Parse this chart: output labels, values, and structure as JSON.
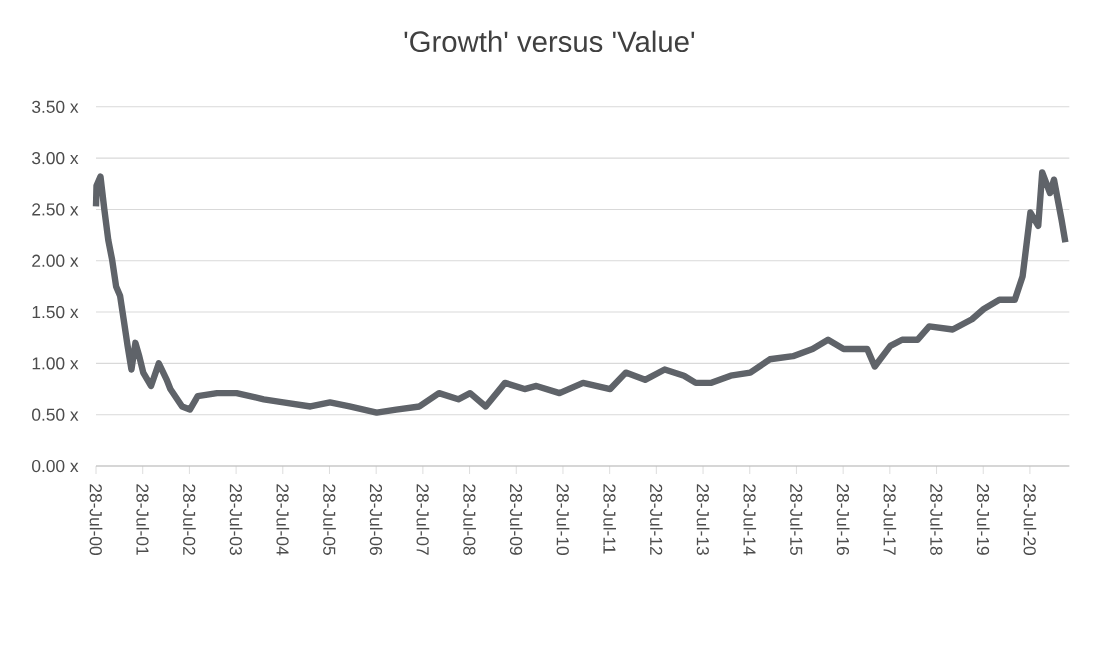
{
  "chart_data": {
    "type": "line",
    "title": "'Growth' versus 'Value'",
    "color": "#5f6369",
    "grid": "y",
    "xlim": [
      "2000-07-28",
      "2021-06-01"
    ],
    "ylim": [
      0,
      3.5
    ],
    "yticks": [
      {
        "value": 0,
        "label": "0.00 x"
      },
      {
        "value": 0.5,
        "label": "0.50 x"
      },
      {
        "value": 1,
        "label": "1.00 x"
      },
      {
        "value": 1.5,
        "label": "1.50 x"
      },
      {
        "value": 2,
        "label": "2.00 x"
      },
      {
        "value": 2.5,
        "label": "2.50 x"
      },
      {
        "value": 3,
        "label": "3.00 x"
      },
      {
        "value": 3.5,
        "label": "3.50 x"
      }
    ],
    "xticks": [
      {
        "value": "2000-07-28",
        "label": "28-Jul-00"
      },
      {
        "value": "2001-07-28",
        "label": "28-Jul-01"
      },
      {
        "value": "2002-07-28",
        "label": "28-Jul-02"
      },
      {
        "value": "2003-07-28",
        "label": "28-Jul-03"
      },
      {
        "value": "2004-07-28",
        "label": "28-Jul-04"
      },
      {
        "value": "2005-07-28",
        "label": "28-Jul-05"
      },
      {
        "value": "2006-07-28",
        "label": "28-Jul-06"
      },
      {
        "value": "2007-07-28",
        "label": "28-Jul-07"
      },
      {
        "value": "2008-07-28",
        "label": "28-Jul-08"
      },
      {
        "value": "2009-07-28",
        "label": "28-Jul-09"
      },
      {
        "value": "2010-07-28",
        "label": "28-Jul-10"
      },
      {
        "value": "2011-07-28",
        "label": "28-Jul-11"
      },
      {
        "value": "2012-07-28",
        "label": "28-Jul-12"
      },
      {
        "value": "2013-07-28",
        "label": "28-Jul-13"
      },
      {
        "value": "2014-07-28",
        "label": "28-Jul-14"
      },
      {
        "value": "2015-07-28",
        "label": "28-Jul-15"
      },
      {
        "value": "2016-07-28",
        "label": "28-Jul-16"
      },
      {
        "value": "2017-07-28",
        "label": "28-Jul-17"
      },
      {
        "value": "2018-07-28",
        "label": "28-Jul-18"
      },
      {
        "value": "2019-07-28",
        "label": "28-Jul-19"
      },
      {
        "value": "2020-07-28",
        "label": "28-Jul-20"
      }
    ],
    "x": [
      "2000-07-28",
      "2000-08",
      "2000-09",
      "2000-10",
      "2000-11",
      "2000-12",
      "2001-01",
      "2001-02",
      "2001-03",
      "2001-04",
      "2001-05",
      "2001-06",
      "2001-07",
      "2001-08",
      "2001-10",
      "2001-12",
      "2002-02",
      "2002-03",
      "2002-06",
      "2002-08",
      "2002-10",
      "2003-03",
      "2003-08",
      "2004-03",
      "2004-08",
      "2005-03",
      "2005-08",
      "2006-01",
      "2006-08",
      "2007-01",
      "2007-07",
      "2007-12",
      "2008-05",
      "2008-08",
      "2008-12",
      "2009-05",
      "2009-10",
      "2010-01",
      "2010-07",
      "2011-01",
      "2011-08",
      "2011-12",
      "2012-05",
      "2012-10",
      "2013-03",
      "2013-06",
      "2013-10",
      "2014-03",
      "2014-08",
      "2015-01",
      "2015-07",
      "2015-12",
      "2016-04",
      "2016-08",
      "2017-02",
      "2017-04",
      "2017-08",
      "2017-11",
      "2018-03",
      "2018-06",
      "2018-12",
      "2019-05",
      "2019-08",
      "2019-12",
      "2020-04",
      "2020-06",
      "2020-08",
      "2020-10",
      "2020-11",
      "2021-01",
      "2021-02",
      "2021-04",
      "2021-05"
    ],
    "values": [
      2.53,
      2.73,
      2.82,
      2.5,
      2.2,
      2.01,
      1.75,
      1.66,
      1.43,
      1.17,
      0.94,
      1.2,
      1.07,
      0.91,
      0.78,
      1.0,
      0.84,
      0.75,
      0.58,
      0.55,
      0.68,
      0.71,
      0.71,
      0.65,
      0.62,
      0.58,
      0.62,
      0.58,
      0.52,
      0.55,
      0.58,
      0.71,
      0.65,
      0.71,
      0.58,
      0.81,
      0.75,
      0.78,
      0.71,
      0.81,
      0.75,
      0.91,
      0.84,
      0.94,
      0.88,
      0.81,
      0.81,
      0.88,
      0.91,
      1.04,
      1.07,
      1.14,
      1.23,
      1.14,
      1.14,
      0.97,
      1.17,
      1.23,
      1.23,
      1.36,
      1.33,
      1.43,
      1.53,
      1.62,
      1.62,
      1.85,
      2.47,
      2.34,
      2.86,
      2.66,
      2.79,
      2.4,
      2.18
    ]
  }
}
